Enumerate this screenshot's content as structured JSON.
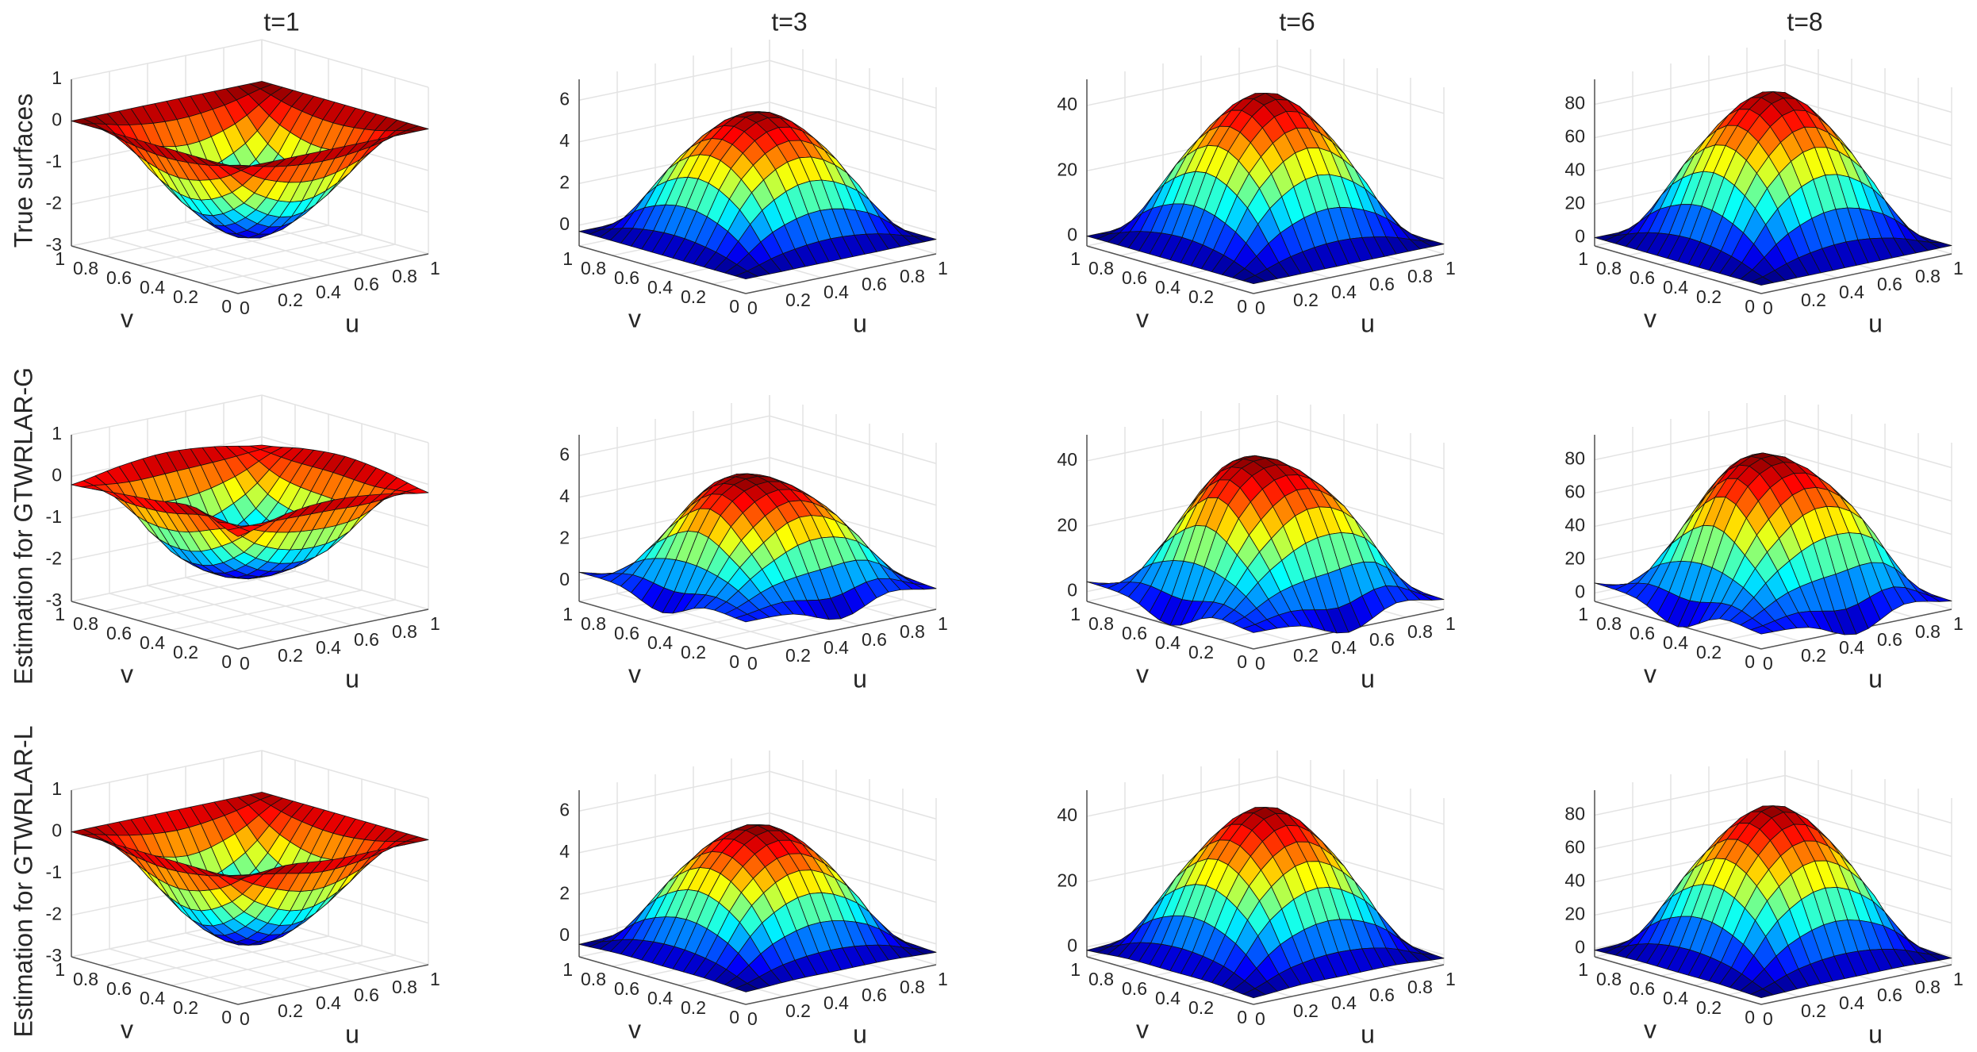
{
  "row_labels": [
    "True surfaces",
    "Estimation for GTWRLAR-G",
    "Estimation for GTWRLAR-L"
  ],
  "chart_data": [
    {
      "type": "surface",
      "title": "t=1",
      "xlabel": "u",
      "ylabel": "v",
      "x": [
        0,
        0.25,
        0.5,
        0.75,
        1
      ],
      "y": [
        0,
        0.25,
        0.5,
        0.75,
        1
      ],
      "xlim": [
        0,
        1
      ],
      "ylim": [
        0,
        1
      ],
      "xticks": [
        0,
        0.2,
        0.4,
        0.6,
        0.8,
        1
      ],
      "yticks": [
        0,
        0.2,
        0.4,
        0.6,
        0.8,
        1
      ],
      "zlim": [
        -3,
        1
      ],
      "zticks": [
        -3,
        -2,
        -1,
        0,
        1
      ],
      "z": [
        [
          0,
          0,
          0,
          0,
          0
        ],
        [
          0,
          -1.35,
          -1.91,
          -1.35,
          0
        ],
        [
          0,
          -1.91,
          -2.7,
          -1.91,
          0
        ],
        [
          0,
          -1.35,
          -1.91,
          -1.35,
          0
        ],
        [
          0,
          0,
          0,
          0,
          0
        ]
      ]
    },
    {
      "type": "surface",
      "title": "t=3",
      "xlabel": "u",
      "ylabel": "v",
      "x": [
        0,
        0.25,
        0.5,
        0.75,
        1
      ],
      "y": [
        0,
        0.25,
        0.5,
        0.75,
        1
      ],
      "xlim": [
        0,
        1
      ],
      "ylim": [
        0,
        1
      ],
      "xticks": [
        0,
        0.2,
        0.4,
        0.6,
        0.8,
        1
      ],
      "yticks": [
        0,
        0.2,
        0.4,
        0.6,
        0.8,
        1
      ],
      "zlim": [
        -1,
        7
      ],
      "zticks": [
        0,
        2,
        4,
        6
      ],
      "z": [
        [
          -0.3,
          -0.3,
          -0.3,
          -0.3,
          -0.3
        ],
        [
          -0.3,
          2.8,
          4,
          2.8,
          -0.3
        ],
        [
          -0.3,
          4,
          5.6,
          4,
          -0.3
        ],
        [
          -0.3,
          2.8,
          4,
          2.8,
          -0.3
        ],
        [
          -0.3,
          -0.3,
          -0.3,
          -0.3,
          -0.3
        ]
      ]
    },
    {
      "type": "surface",
      "title": "t=6",
      "xlabel": "u",
      "ylabel": "v",
      "x": [
        0,
        0.25,
        0.5,
        0.75,
        1
      ],
      "y": [
        0,
        0.25,
        0.5,
        0.75,
        1
      ],
      "xlim": [
        0,
        1
      ],
      "ylim": [
        0,
        1
      ],
      "xticks": [
        0,
        0.2,
        0.4,
        0.6,
        0.8,
        1
      ],
      "yticks": [
        0,
        0.2,
        0.4,
        0.6,
        0.8,
        1
      ],
      "zlim": [
        -3,
        48
      ],
      "zticks": [
        0,
        20,
        40
      ],
      "z": [
        [
          0,
          0,
          0,
          0,
          0
        ],
        [
          0,
          22.5,
          31.8,
          22.5,
          0
        ],
        [
          0,
          31.8,
          45,
          31.8,
          0
        ],
        [
          0,
          22.5,
          31.8,
          22.5,
          0
        ],
        [
          0,
          0,
          0,
          0,
          0
        ]
      ]
    },
    {
      "type": "surface",
      "title": "t=8",
      "xlabel": "u",
      "ylabel": "v",
      "x": [
        0,
        0.25,
        0.5,
        0.75,
        1
      ],
      "y": [
        0,
        0.25,
        0.5,
        0.75,
        1
      ],
      "xlim": [
        0,
        1
      ],
      "ylim": [
        0,
        1
      ],
      "xticks": [
        0,
        0.2,
        0.4,
        0.6,
        0.8,
        1
      ],
      "yticks": [
        0,
        0.2,
        0.4,
        0.6,
        0.8,
        1
      ],
      "zlim": [
        -5,
        95
      ],
      "zticks": [
        0,
        20,
        40,
        60,
        80
      ],
      "z": [
        [
          0,
          0,
          0,
          0,
          0
        ],
        [
          0,
          45,
          63.6,
          45,
          0
        ],
        [
          0,
          63.6,
          90,
          63.6,
          0
        ],
        [
          0,
          45,
          63.6,
          45,
          0
        ],
        [
          0,
          0,
          0,
          0,
          0
        ]
      ]
    },
    {
      "type": "surface",
      "xlabel": "u",
      "ylabel": "v",
      "x": [
        0,
        0.25,
        0.5,
        0.75,
        1
      ],
      "y": [
        0,
        0.25,
        0.5,
        0.75,
        1
      ],
      "xlim": [
        0,
        1
      ],
      "ylim": [
        0,
        1
      ],
      "xticks": [
        0,
        0.2,
        0.4,
        0.6,
        0.8,
        1
      ],
      "yticks": [
        0,
        0.2,
        0.4,
        0.6,
        0.8,
        1
      ],
      "zlim": [
        -3,
        1
      ],
      "zticks": [
        -3,
        -2,
        -1,
        0,
        1
      ],
      "z": [
        [
          -0.3,
          0,
          0.1,
          0,
          -0.2
        ],
        [
          0.1,
          -1.2,
          -1.7,
          -1.4,
          0
        ],
        [
          0,
          -1.8,
          -2.3,
          -1.6,
          0.1
        ],
        [
          -0.1,
          -1.5,
          -1.8,
          -1.2,
          0
        ],
        [
          -0.2,
          0,
          0.1,
          0,
          -0.2
        ]
      ]
    },
    {
      "type": "surface",
      "xlabel": "u",
      "ylabel": "v",
      "x": [
        0,
        0.25,
        0.5,
        0.75,
        1
      ],
      "y": [
        0,
        0.25,
        0.5,
        0.75,
        1
      ],
      "xlim": [
        0,
        1
      ],
      "ylim": [
        0,
        1
      ],
      "xticks": [
        0,
        0.2,
        0.4,
        0.6,
        0.8,
        1
      ],
      "yticks": [
        0,
        0.2,
        0.4,
        0.6,
        0.8,
        1
      ],
      "zlim": [
        -1,
        7
      ],
      "zticks": [
        0,
        2,
        4,
        6
      ],
      "z": [
        [
          0.3,
          0.2,
          -0.5,
          0.3,
          0
        ],
        [
          0.4,
          2.5,
          3.8,
          2.9,
          0.2
        ],
        [
          -0.4,
          4.1,
          5.2,
          3.7,
          0.5
        ],
        [
          0.3,
          2.6,
          4.2,
          2.4,
          -0.2
        ],
        [
          0.4,
          -0.3,
          0.5,
          0.1,
          0
        ]
      ]
    },
    {
      "type": "surface",
      "xlabel": "u",
      "ylabel": "v",
      "x": [
        0,
        0.25,
        0.5,
        0.75,
        1
      ],
      "y": [
        0,
        0.25,
        0.5,
        0.75,
        1
      ],
      "xlim": [
        0,
        1
      ],
      "ylim": [
        0,
        1
      ],
      "xticks": [
        0,
        0.2,
        0.4,
        0.6,
        0.8,
        1
      ],
      "yticks": [
        0,
        0.2,
        0.4,
        0.6,
        0.8,
        1
      ],
      "zlim": [
        -3,
        48
      ],
      "zticks": [
        0,
        20,
        40
      ],
      "z": [
        [
          2,
          1,
          -4,
          2,
          0
        ],
        [
          3,
          20,
          30,
          24,
          1
        ],
        [
          -3,
          33,
          42,
          30,
          4
        ],
        [
          2,
          21,
          34,
          19,
          -2
        ],
        [
          3,
          -2,
          4,
          1,
          0
        ]
      ]
    },
    {
      "type": "surface",
      "xlabel": "u",
      "ylabel": "v",
      "x": [
        0,
        0.25,
        0.5,
        0.75,
        1
      ],
      "y": [
        0,
        0.25,
        0.5,
        0.75,
        1
      ],
      "xlim": [
        0,
        1
      ],
      "ylim": [
        0,
        1
      ],
      "xticks": [
        0,
        0.2,
        0.4,
        0.6,
        0.8,
        1
      ],
      "yticks": [
        0,
        0.2,
        0.4,
        0.6,
        0.8,
        1
      ],
      "zlim": [
        -5,
        95
      ],
      "zticks": [
        0,
        20,
        40,
        60,
        80
      ],
      "z": [
        [
          4,
          2,
          -8,
          4,
          0
        ],
        [
          6,
          40,
          60,
          48,
          2
        ],
        [
          -6,
          66,
          85,
          60,
          8
        ],
        [
          4,
          42,
          68,
          38,
          -4
        ],
        [
          6,
          -4,
          8,
          2,
          0
        ]
      ]
    },
    {
      "type": "surface",
      "xlabel": "u",
      "ylabel": "v",
      "x": [
        0,
        0.25,
        0.5,
        0.75,
        1
      ],
      "y": [
        0,
        0.25,
        0.5,
        0.75,
        1
      ],
      "xlim": [
        0,
        1
      ],
      "ylim": [
        0,
        1
      ],
      "xticks": [
        0,
        0.2,
        0.4,
        0.6,
        0.8,
        1
      ],
      "yticks": [
        0,
        0.2,
        0.4,
        0.6,
        0.8,
        1
      ],
      "zlim": [
        -3,
        1
      ],
      "zticks": [
        -3,
        -2,
        -1,
        0,
        1
      ],
      "z": [
        [
          0,
          0.1,
          0,
          0,
          0
        ],
        [
          0,
          -1.3,
          -1.85,
          -1.3,
          0
        ],
        [
          0,
          -1.9,
          -2.6,
          -1.85,
          0
        ],
        [
          0,
          -1.3,
          -1.9,
          -1.3,
          0
        ],
        [
          0,
          0,
          0,
          0,
          0
        ]
      ]
    },
    {
      "type": "surface",
      "xlabel": "u",
      "ylabel": "v",
      "x": [
        0,
        0.25,
        0.5,
        0.75,
        1
      ],
      "y": [
        0,
        0.25,
        0.5,
        0.75,
        1
      ],
      "xlim": [
        0,
        1
      ],
      "ylim": [
        0,
        1
      ],
      "xticks": [
        0,
        0.2,
        0.4,
        0.6,
        0.8,
        1
      ],
      "yticks": [
        0,
        0.2,
        0.4,
        0.6,
        0.8,
        1
      ],
      "zlim": [
        -1,
        7
      ],
      "zticks": [
        0,
        2,
        4,
        6
      ],
      "z": [
        [
          -0.4,
          -0.3,
          -0.3,
          -0.3,
          -0.4
        ],
        [
          -0.3,
          2.7,
          3.9,
          2.7,
          -0.3
        ],
        [
          -0.3,
          3.9,
          5.5,
          3.9,
          -0.3
        ],
        [
          -0.3,
          2.7,
          3.9,
          2.7,
          -0.3
        ],
        [
          -0.4,
          -0.3,
          -0.3,
          -0.3,
          -0.4
        ]
      ]
    },
    {
      "type": "surface",
      "xlabel": "u",
      "ylabel": "v",
      "x": [
        0,
        0.25,
        0.5,
        0.75,
        1
      ],
      "y": [
        0,
        0.25,
        0.5,
        0.75,
        1
      ],
      "xlim": [
        0,
        1
      ],
      "ylim": [
        0,
        1
      ],
      "xticks": [
        0,
        0.2,
        0.4,
        0.6,
        0.8,
        1
      ],
      "yticks": [
        0,
        0.2,
        0.4,
        0.6,
        0.8,
        1
      ],
      "zlim": [
        -3,
        48
      ],
      "zticks": [
        0,
        20,
        40
      ],
      "z": [
        [
          -1,
          0,
          0,
          0,
          -1
        ],
        [
          0,
          22,
          31,
          22,
          0
        ],
        [
          0,
          31,
          44,
          31,
          0
        ],
        [
          0,
          22,
          31,
          22,
          0
        ],
        [
          -1,
          0,
          0,
          0,
          -1
        ]
      ]
    },
    {
      "type": "surface",
      "xlabel": "u",
      "ylabel": "v",
      "x": [
        0,
        0.25,
        0.5,
        0.75,
        1
      ],
      "y": [
        0,
        0.25,
        0.5,
        0.75,
        1
      ],
      "xlim": [
        0,
        1
      ],
      "ylim": [
        0,
        1
      ],
      "xticks": [
        0,
        0.2,
        0.4,
        0.6,
        0.8,
        1
      ],
      "yticks": [
        0,
        0.2,
        0.4,
        0.6,
        0.8,
        1
      ],
      "zlim": [
        -5,
        95
      ],
      "zticks": [
        0,
        20,
        40,
        60,
        80
      ],
      "z": [
        [
          -1,
          0,
          0,
          0,
          -1
        ],
        [
          0,
          44,
          62,
          44,
          0
        ],
        [
          0,
          62,
          88,
          62,
          0
        ],
        [
          0,
          44,
          62,
          44,
          0
        ],
        [
          -1,
          0,
          0,
          0,
          -1
        ]
      ]
    }
  ]
}
